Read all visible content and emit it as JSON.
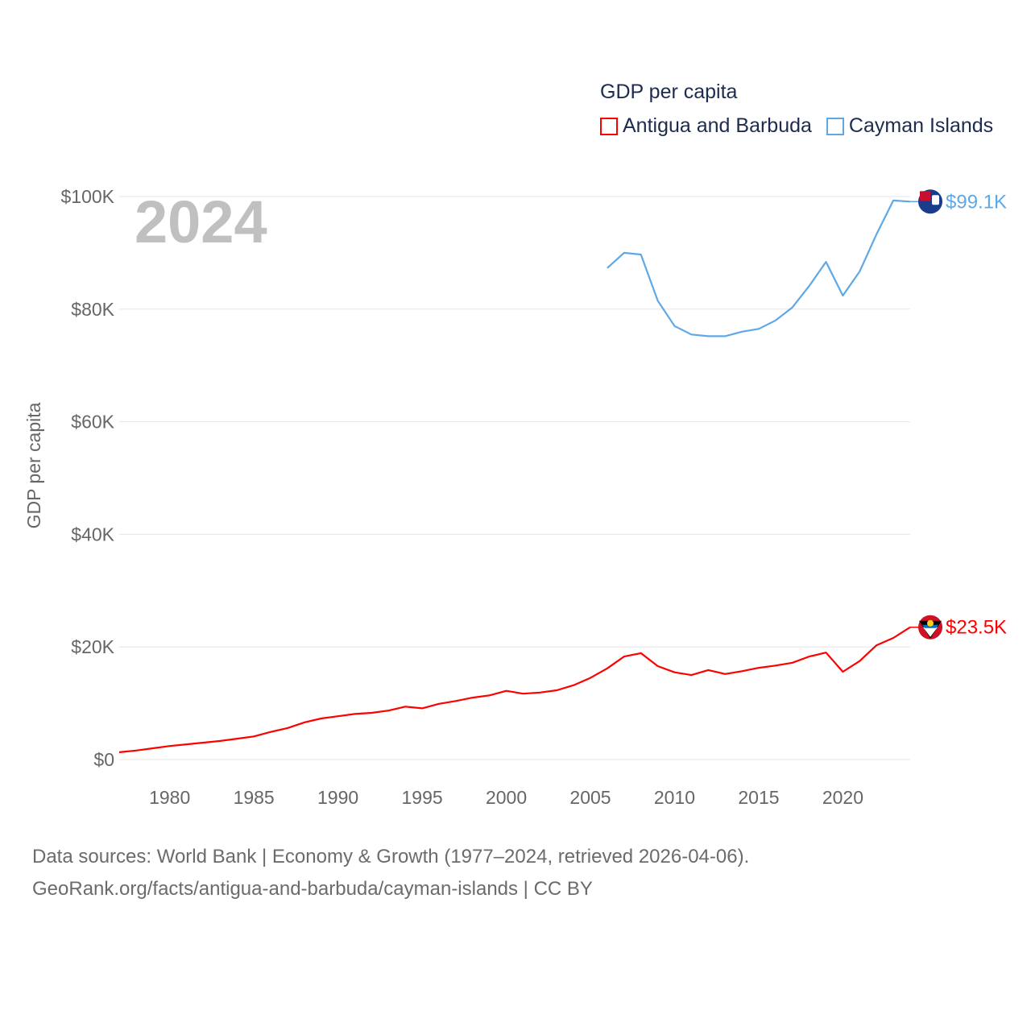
{
  "chart_data": {
    "type": "line",
    "legend_title": "GDP per capita",
    "ylabel": "GDP per capita",
    "xlabel": "",
    "year_label": "2024",
    "ylim": [
      0,
      100000
    ],
    "xlim": [
      1977,
      2024
    ],
    "y_ticks": [
      {
        "v": 0,
        "label": "$0"
      },
      {
        "v": 20000,
        "label": "$20K"
      },
      {
        "v": 40000,
        "label": "$40K"
      },
      {
        "v": 60000,
        "label": "$60K"
      },
      {
        "v": 80000,
        "label": "$80K"
      },
      {
        "v": 100000,
        "label": "$100K"
      }
    ],
    "x_ticks": [
      {
        "v": 1980,
        "label": "1980"
      },
      {
        "v": 1985,
        "label": "1985"
      },
      {
        "v": 1990,
        "label": "1990"
      },
      {
        "v": 1995,
        "label": "1995"
      },
      {
        "v": 2000,
        "label": "2000"
      },
      {
        "v": 2005,
        "label": "2005"
      },
      {
        "v": 2010,
        "label": "2010"
      },
      {
        "v": 2015,
        "label": "2015"
      },
      {
        "v": 2020,
        "label": "2020"
      }
    ],
    "grid": true,
    "legend_placement": "top-right",
    "series": [
      {
        "name": "Antigua and Barbuda",
        "color": "#ff0000",
        "end_label": "$23.5K",
        "x_start": 1977,
        "values": [
          1300,
          1600,
          2000,
          2400,
          2700,
          3000,
          3300,
          3700,
          4100,
          4900,
          5600,
          6600,
          7300,
          7700,
          8100,
          8300,
          8700,
          9400,
          9100,
          9900,
          10400,
          11000,
          11400,
          12200,
          11700,
          11900,
          12300,
          13200,
          14500,
          16200,
          18300,
          18900,
          16600,
          15500,
          15000,
          15900,
          15200,
          15700,
          16300,
          16700,
          17200,
          18300,
          19000,
          15600,
          17500,
          20300,
          21600,
          23500
        ]
      },
      {
        "name": "Cayman Islands",
        "color": "#5fa8e8",
        "end_label": "$99.1K",
        "x_start": 2006,
        "values": [
          87300,
          90000,
          89700,
          81500,
          77000,
          75500,
          75200,
          75200,
          76000,
          76500,
          78000,
          80300,
          84100,
          88400,
          82400,
          86700,
          93300,
          99300,
          99100
        ]
      }
    ]
  },
  "footer": {
    "line1": "Data sources: World Bank | Economy & Growth (1977–2024, retrieved 2026-04-06).",
    "line2": "GeoRank.org/facts/antigua-and-barbuda/cayman-islands | CC BY"
  }
}
